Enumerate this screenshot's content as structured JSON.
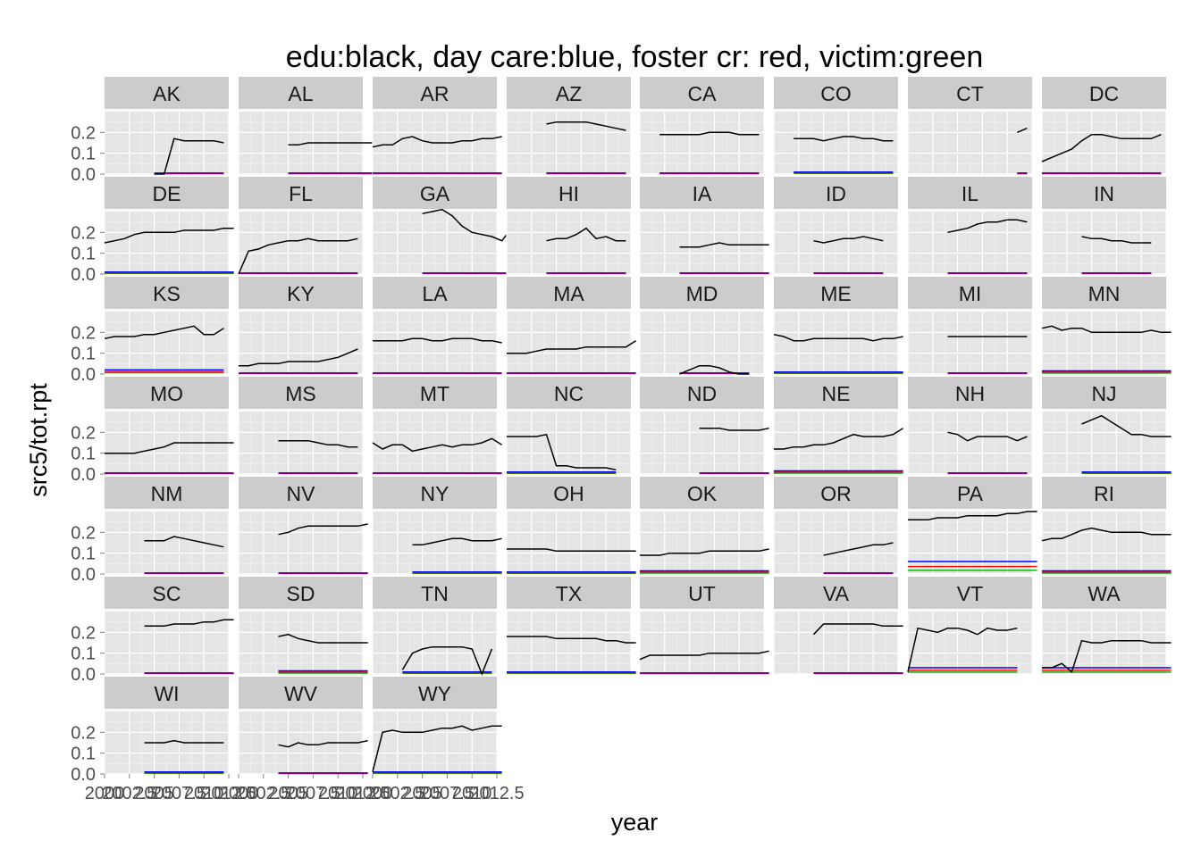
{
  "chart_data": {
    "type": "line",
    "title": "edu:black, day care:blue, foster cr: red, victim:green",
    "xlabel": "year",
    "ylabel": "src5/tot.rpt",
    "ylim": [
      0,
      0.3
    ],
    "y_ticks": [
      {
        "value": 0.0,
        "label": "0.0"
      },
      {
        "value": 0.1,
        "label": "0.1"
      },
      {
        "value": 0.2,
        "label": "0.2"
      }
    ],
    "xlim": [
      2000,
      2012.5
    ],
    "x_ticks": [
      {
        "value": 2000,
        "label": "2000"
      },
      {
        "value": 2002.5,
        "label": "2002.5"
      },
      {
        "value": 2005,
        "label": "2005"
      },
      {
        "value": 2007.5,
        "label": "2007.5"
      },
      {
        "value": 2010,
        "label": "2010"
      },
      {
        "value": 2012.5,
        "label": "2012.5"
      }
    ],
    "series_colors": {
      "edu": "#000000",
      "daycare": "#0000ff",
      "foster": "#ff0000",
      "victim": "#00aa00"
    },
    "grid": true,
    "background": "#e5e5e5",
    "strip_background": "#cccccc",
    "columns": 8,
    "facets": [
      {
        "state": "AK",
        "start": 2005,
        "edu": [
          0,
          0,
          0.17,
          0.16,
          0.16,
          0.16,
          0.16,
          0.15
        ],
        "low": 0.005
      },
      {
        "state": "AL",
        "start": 2005,
        "edu": [
          0.14,
          0.14,
          0.15,
          0.15,
          0.15,
          0.15,
          0.15,
          0.15,
          0.15,
          0.15,
          0.15,
          0.14,
          0.14
        ],
        "low": 0.005
      },
      {
        "state": "AR",
        "start": 2000,
        "edu": [
          0.13,
          0.14,
          0.14,
          0.17,
          0.18,
          0.16,
          0.15,
          0.15,
          0.15,
          0.16,
          0.16,
          0.17,
          0.17,
          0.18
        ],
        "low": 0.005
      },
      {
        "state": "AZ",
        "start": 2004,
        "edu": [
          0.24,
          0.25,
          0.25,
          0.25,
          0.25,
          0.24,
          0.23,
          0.22,
          0.21
        ],
        "low": 0.005
      },
      {
        "state": "CA",
        "start": 2002,
        "edu": [
          0.19,
          0.19,
          0.19,
          0.19,
          0.19,
          0.2,
          0.2,
          0.2,
          0.19,
          0.19,
          0.19
        ],
        "low": 0.005
      },
      {
        "state": "CO",
        "start": 2002,
        "edu": [
          0.17,
          0.17,
          0.17,
          0.16,
          0.17,
          0.18,
          0.18,
          0.17,
          0.17,
          0.16,
          0.16
        ],
        "low": 0.01
      },
      {
        "state": "CT",
        "start": 2011,
        "edu": [
          0.2,
          0.22
        ],
        "low": 0.005
      },
      {
        "state": "DC",
        "start": 2000,
        "edu": [
          0.06,
          0.08,
          0.1,
          0.12,
          0.16,
          0.19,
          0.19,
          0.18,
          0.17,
          0.17,
          0.17,
          0.17,
          0.19
        ],
        "low": 0.005
      },
      {
        "state": "DE",
        "start": 2000,
        "edu": [
          0.15,
          0.16,
          0.17,
          0.19,
          0.2,
          0.2,
          0.2,
          0.2,
          0.21,
          0.21,
          0.21,
          0.21,
          0.22,
          0.22
        ],
        "low": 0.01
      },
      {
        "state": "FL",
        "start": 2000,
        "edu": [
          0,
          0.11,
          0.12,
          0.14,
          0.15,
          0.16,
          0.16,
          0.17,
          0.16,
          0.16,
          0.16,
          0.16,
          0.17
        ],
        "low": 0.005
      },
      {
        "state": "GA",
        "start": 2005,
        "edu": [
          0.29,
          0.3,
          0.31,
          0.28,
          0.23,
          0.2,
          0.19,
          0.18,
          0.16,
          0.22
        ],
        "low": 0.005
      },
      {
        "state": "HI",
        "start": 2004,
        "edu": [
          0.16,
          0.17,
          0.17,
          0.19,
          0.22,
          0.17,
          0.18,
          0.16,
          0.16
        ],
        "low": 0.005
      },
      {
        "state": "IA",
        "start": 2004,
        "edu": [
          0.13,
          0.13,
          0.13,
          0.14,
          0.15,
          0.14,
          0.14,
          0.14,
          0.14,
          0.14
        ],
        "low": 0.005
      },
      {
        "state": "ID",
        "start": 2004,
        "edu": [
          0.16,
          0.15,
          0.16,
          0.17,
          0.17,
          0.18,
          0.17,
          0.16
        ],
        "low": 0.005
      },
      {
        "state": "IL",
        "start": 2004,
        "edu": [
          0.2,
          0.21,
          0.22,
          0.24,
          0.25,
          0.25,
          0.26,
          0.26,
          0.25
        ],
        "low": 0.005
      },
      {
        "state": "IN",
        "start": 2004,
        "edu": [
          0.18,
          0.17,
          0.17,
          0.16,
          0.16,
          0.15,
          0.15,
          0.15
        ],
        "low": 0.005
      },
      {
        "state": "KS",
        "start": 2000,
        "edu": [
          0.17,
          0.18,
          0.18,
          0.18,
          0.19,
          0.19,
          0.2,
          0.21,
          0.22,
          0.23,
          0.19,
          0.19,
          0.22
        ],
        "low": 0.02
      },
      {
        "state": "KY",
        "start": 2000,
        "edu": [
          0.04,
          0.04,
          0.05,
          0.05,
          0.05,
          0.06,
          0.06,
          0.06,
          0.06,
          0.07,
          0.08,
          0.1,
          0.12
        ],
        "low": 0.005
      },
      {
        "state": "LA",
        "start": 2000,
        "edu": [
          0.16,
          0.16,
          0.16,
          0.16,
          0.17,
          0.17,
          0.16,
          0.16,
          0.17,
          0.17,
          0.17,
          0.16,
          0.16,
          0.15
        ],
        "low": 0.005
      },
      {
        "state": "MA",
        "start": 2000,
        "edu": [
          0.1,
          0.1,
          0.1,
          0.11,
          0.12,
          0.12,
          0.12,
          0.12,
          0.13,
          0.13,
          0.13,
          0.13,
          0.13,
          0.16
        ],
        "low": 0.005
      },
      {
        "state": "MD",
        "start": 2004,
        "edu": [
          0,
          0.02,
          0.04,
          0.04,
          0.03,
          0.01,
          0,
          0
        ],
        "low": 0.005
      },
      {
        "state": "ME",
        "start": 2000,
        "edu": [
          0.19,
          0.18,
          0.16,
          0.16,
          0.17,
          0.17,
          0.17,
          0.17,
          0.17,
          0.17,
          0.16,
          0.17,
          0.17,
          0.18
        ],
        "low": 0.01
      },
      {
        "state": "MI",
        "start": 2004,
        "edu": [
          0.18,
          0.18,
          0.18,
          0.18,
          0.18,
          0.18,
          0.18,
          0.18,
          0.18
        ],
        "low": 0.005
      },
      {
        "state": "MN",
        "start": 2000,
        "edu": [
          0.22,
          0.23,
          0.21,
          0.22,
          0.22,
          0.2,
          0.2,
          0.2,
          0.2,
          0.2,
          0.2,
          0.21,
          0.2,
          0.2
        ],
        "low": 0.015
      },
      {
        "state": "MO",
        "start": 2000,
        "edu": [
          0.1,
          0.1,
          0.1,
          0.1,
          0.11,
          0.12,
          0.13,
          0.15,
          0.15,
          0.15,
          0.15,
          0.15,
          0.15,
          0.15
        ],
        "low": 0.005
      },
      {
        "state": "MS",
        "start": 2004,
        "edu": [
          0.16,
          0.16,
          0.16,
          0.16,
          0.15,
          0.14,
          0.14,
          0.13,
          0.13
        ],
        "low": 0.005
      },
      {
        "state": "MT",
        "start": 2000,
        "edu": [
          0.15,
          0.12,
          0.14,
          0.14,
          0.11,
          0.12,
          0.13,
          0.14,
          0.13,
          0.14,
          0.14,
          0.15,
          0.17,
          0.14
        ],
        "low": 0.005
      },
      {
        "state": "NC",
        "start": 2000,
        "edu": [
          0.18,
          0.18,
          0.18,
          0.18,
          0.19,
          0.04,
          0.04,
          0.03,
          0.03,
          0.03,
          0.03,
          0.02
        ],
        "low": 0.01
      },
      {
        "state": "ND",
        "start": 2006,
        "edu": [
          0.22,
          0.22,
          0.22,
          0.21,
          0.21,
          0.21,
          0.21,
          0.22
        ],
        "low": 0.005
      },
      {
        "state": "NE",
        "start": 2000,
        "edu": [
          0.12,
          0.12,
          0.13,
          0.13,
          0.14,
          0.14,
          0.15,
          0.17,
          0.19,
          0.18,
          0.18,
          0.18,
          0.19,
          0.22
        ],
        "low": 0.015
      },
      {
        "state": "NH",
        "start": 2004,
        "edu": [
          0.2,
          0.19,
          0.16,
          0.18,
          0.18,
          0.18,
          0.18,
          0.16,
          0.18
        ],
        "low": 0.005
      },
      {
        "state": "NJ",
        "start": 2004,
        "edu": [
          0.24,
          0.26,
          0.28,
          0.25,
          0.22,
          0.19,
          0.19,
          0.18,
          0.18,
          0.18
        ],
        "low": 0.01
      },
      {
        "state": "NM",
        "start": 2004,
        "edu": [
          0.16,
          0.16,
          0.16,
          0.18,
          0.17,
          0.16,
          0.15,
          0.14,
          0.13
        ],
        "low": 0.005
      },
      {
        "state": "NV",
        "start": 2004,
        "edu": [
          0.19,
          0.2,
          0.22,
          0.23,
          0.23,
          0.23,
          0.23,
          0.23,
          0.23,
          0.24
        ],
        "low": 0.005
      },
      {
        "state": "NY",
        "start": 2004,
        "edu": [
          0.14,
          0.14,
          0.15,
          0.16,
          0.17,
          0.17,
          0.16,
          0.16,
          0.16,
          0.17
        ],
        "low": 0.01
      },
      {
        "state": "OH",
        "start": 2000,
        "edu": [
          0.12,
          0.12,
          0.12,
          0.12,
          0.12,
          0.11,
          0.11,
          0.11,
          0.11,
          0.11,
          0.11,
          0.11,
          0.11,
          0.11
        ],
        "low": 0.01
      },
      {
        "state": "OK",
        "start": 2000,
        "edu": [
          0.09,
          0.09,
          0.09,
          0.1,
          0.1,
          0.1,
          0.1,
          0.11,
          0.11,
          0.11,
          0.11,
          0.11,
          0.11,
          0.12
        ],
        "low": 0.015
      },
      {
        "state": "OR",
        "start": 2005,
        "edu": [
          0.09,
          0.1,
          0.11,
          0.12,
          0.13,
          0.14,
          0.14,
          0.15
        ],
        "low": 0.005
      },
      {
        "state": "PA",
        "start": 2000,
        "edu": [
          0.26,
          0.26,
          0.26,
          0.27,
          0.27,
          0.27,
          0.28,
          0.28,
          0.28,
          0.28,
          0.29,
          0.29,
          0.3,
          0.3
        ],
        "low": 0.06
      },
      {
        "state": "RI",
        "start": 2000,
        "edu": [
          0.16,
          0.17,
          0.17,
          0.19,
          0.21,
          0.22,
          0.21,
          0.2,
          0.2,
          0.2,
          0.2,
          0.19,
          0.19,
          0.19
        ],
        "low": 0.015
      },
      {
        "state": "SC",
        "start": 2004,
        "edu": [
          0.23,
          0.23,
          0.23,
          0.24,
          0.24,
          0.24,
          0.25,
          0.25,
          0.26,
          0.26
        ],
        "low": 0.005
      },
      {
        "state": "SD",
        "start": 2004,
        "edu": [
          0.18,
          0.19,
          0.17,
          0.16,
          0.15,
          0.15,
          0.15,
          0.15,
          0.15,
          0.15
        ],
        "low": 0.015
      },
      {
        "state": "TN",
        "start": 2003,
        "edu": [
          0.02,
          0.1,
          0.12,
          0.13,
          0.13,
          0.13,
          0.13,
          0.12,
          0,
          0.12
        ],
        "low": 0.01
      },
      {
        "state": "TX",
        "start": 2000,
        "edu": [
          0.18,
          0.18,
          0.18,
          0.18,
          0.18,
          0.17,
          0.17,
          0.17,
          0.17,
          0.17,
          0.16,
          0.16,
          0.15,
          0.15
        ],
        "low": 0.01
      },
      {
        "state": "UT",
        "start": 2000,
        "edu": [
          0.07,
          0.09,
          0.09,
          0.09,
          0.09,
          0.09,
          0.09,
          0.1,
          0.1,
          0.1,
          0.1,
          0.1,
          0.1,
          0.11
        ],
        "low": 0.005
      },
      {
        "state": "VA",
        "start": 2004,
        "edu": [
          0.19,
          0.24,
          0.24,
          0.24,
          0.24,
          0.24,
          0.24,
          0.23,
          0.23,
          0.23
        ],
        "low": 0.005
      },
      {
        "state": "VT",
        "start": 2000,
        "edu": [
          0.01,
          0.22,
          0.21,
          0.2,
          0.22,
          0.22,
          0.21,
          0.19,
          0.22,
          0.21,
          0.21,
          0.22
        ],
        "low": 0.03
      },
      {
        "state": "WA",
        "start": 2000,
        "edu": [
          0.03,
          0.03,
          0.05,
          0.01,
          0.16,
          0.15,
          0.15,
          0.16,
          0.16,
          0.16,
          0.16,
          0.15,
          0.15,
          0.15
        ],
        "low": 0.03
      },
      {
        "state": "WI",
        "start": 2004,
        "edu": [
          0.15,
          0.15,
          0.15,
          0.16,
          0.15,
          0.15,
          0.15,
          0.15,
          0.15
        ],
        "low": 0.01
      },
      {
        "state": "WV",
        "start": 2004,
        "edu": [
          0.14,
          0.13,
          0.15,
          0.14,
          0.14,
          0.15,
          0.15,
          0.15,
          0.15,
          0.16
        ],
        "low": 0.005
      },
      {
        "state": "WY",
        "start": 2000,
        "edu": [
          0.01,
          0.2,
          0.21,
          0.2,
          0.2,
          0.2,
          0.21,
          0.22,
          0.22,
          0.23,
          0.21,
          0.22,
          0.23,
          0.23
        ],
        "low": 0.01
      }
    ]
  }
}
